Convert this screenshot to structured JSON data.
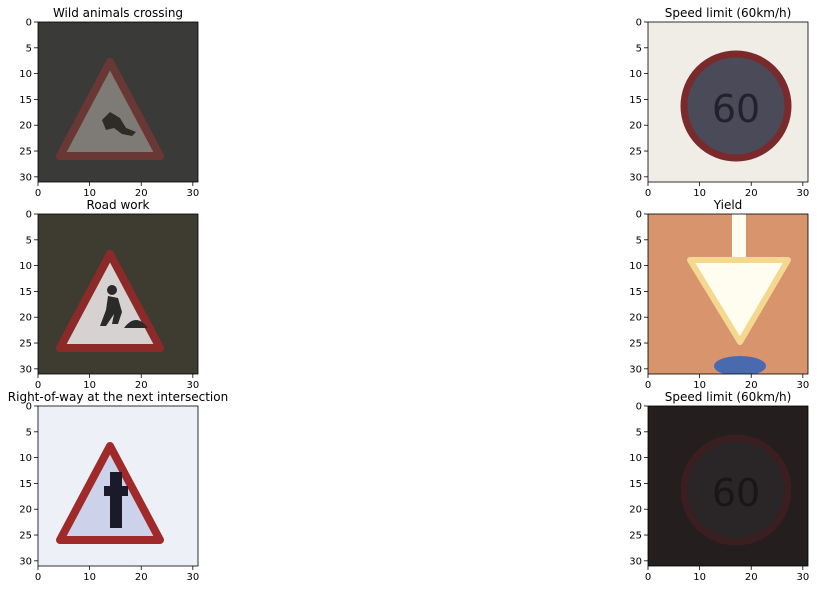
{
  "chart_data": [
    {
      "type": "image",
      "title": "Wild animals crossing",
      "xlim": [
        0,
        31
      ],
      "ylim": [
        31,
        0
      ],
      "xticks": [
        0,
        10,
        20,
        30
      ],
      "yticks": [
        0,
        5,
        10,
        15,
        20,
        25,
        30
      ],
      "picture": {
        "background": "#3a3a38",
        "sign": "warning-triangle",
        "border_color": "#6a3834",
        "fill_color": "#7e7a76",
        "symbol_color": "#2e2b28",
        "symbol": "deer"
      }
    },
    {
      "type": "image",
      "title": "Speed limit (60km/h)",
      "xlim": [
        0,
        31
      ],
      "ylim": [
        31,
        0
      ],
      "xticks": [
        0,
        10,
        20,
        30
      ],
      "yticks": [
        0,
        5,
        10,
        15,
        20,
        25,
        30
      ],
      "picture": {
        "background": "#f0ece6",
        "sign": "round-limit",
        "border_color": "#7a2a2a",
        "fill_color": "#4a4a58",
        "symbol_color": "#22222e",
        "symbol": "60"
      }
    },
    {
      "type": "image",
      "title": "Road work",
      "xlim": [
        0,
        31
      ],
      "ylim": [
        31,
        0
      ],
      "xticks": [
        0,
        10,
        20,
        30
      ],
      "yticks": [
        0,
        5,
        10,
        15,
        20,
        25,
        30
      ],
      "picture": {
        "background": "#3e3c30",
        "sign": "warning-triangle",
        "border_color": "#8c2a2a",
        "fill_color": "#d6d2d2",
        "symbol_color": "#2a2a2a",
        "symbol": "worker"
      }
    },
    {
      "type": "image",
      "title": "Yield",
      "xlim": [
        0,
        31
      ],
      "ylim": [
        31,
        0
      ],
      "xticks": [
        0,
        10,
        20,
        30
      ],
      "yticks": [
        0,
        5,
        10,
        15,
        20,
        25,
        30
      ],
      "picture": {
        "background": "#d8946c",
        "sign": "yield",
        "border_color": "#f4d890",
        "fill_color": "#fffdf0",
        "symbol_color": "#4a6ab0",
        "symbol": "none"
      }
    },
    {
      "type": "image",
      "title": "Right-of-way at the next intersection",
      "xlim": [
        0,
        31
      ],
      "ylim": [
        31,
        0
      ],
      "xticks": [
        0,
        10,
        20,
        30
      ],
      "yticks": [
        0,
        5,
        10,
        15,
        20,
        25,
        30
      ],
      "picture": {
        "background": "#eef0f8",
        "sign": "warning-triangle",
        "border_color": "#a02a2a",
        "fill_color": "#ccd2ea",
        "symbol_color": "#1a1a2a",
        "symbol": "cross"
      }
    },
    {
      "type": "image",
      "title": "Speed limit (60km/h)",
      "xlim": [
        0,
        31
      ],
      "ylim": [
        31,
        0
      ],
      "xticks": [
        0,
        10,
        20,
        30
      ],
      "yticks": [
        0,
        5,
        10,
        15,
        20,
        25,
        30
      ],
      "picture": {
        "background": "#241e1e",
        "sign": "round-limit",
        "border_color": "#3a1e20",
        "fill_color": "#2a2628",
        "symbol_color": "#1a1618",
        "symbol": "60"
      }
    }
  ]
}
